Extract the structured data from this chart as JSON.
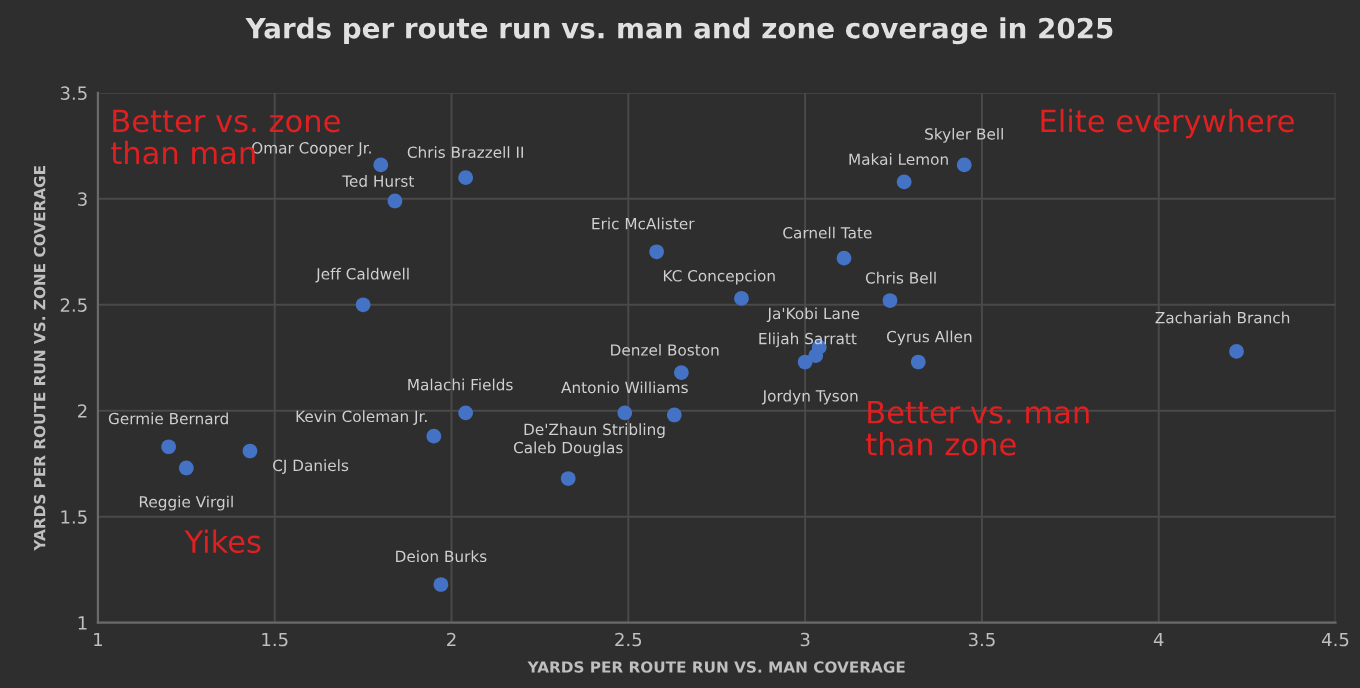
{
  "chart_data": {
    "type": "scatter",
    "title": "Yards per route run vs. man and zone coverage in 2025",
    "xlabel": "YARDS PER ROUTE RUN VS. MAN COVERAGE",
    "ylabel": "YARDS PER ROUTE RUN VS. ZONE COVERAGE",
    "xlim": [
      1,
      4.5
    ],
    "xticks": [
      1,
      1.5,
      2,
      2.5,
      3,
      3.5,
      4,
      4.5
    ],
    "ylim": [
      1,
      3.5
    ],
    "yticks": [
      1,
      1.5,
      2,
      2.5,
      3,
      3.5
    ],
    "grid": true,
    "marker": "circle",
    "series": [
      {
        "color": "#4472c4",
        "x": [
          1.8,
          2.04,
          1.84,
          1.75,
          2.58,
          3.28,
          3.45,
          3.11,
          2.82,
          3.24,
          4.22,
          3.32,
          3.03,
          3.04,
          3.0,
          2.65,
          2.49,
          2.63,
          2.04,
          1.95,
          2.33,
          1.2,
          1.43,
          1.25,
          1.97
        ],
        "values": [
          3.16,
          3.1,
          2.99,
          2.5,
          2.75,
          3.08,
          3.16,
          2.72,
          2.53,
          2.52,
          2.28,
          2.23,
          2.26,
          2.3,
          2.23,
          2.18,
          1.99,
          1.98,
          1.99,
          1.88,
          1.68,
          1.83,
          1.81,
          1.73,
          1.18
        ]
      }
    ],
    "annotations": [
      {
        "text": "Omar Cooper Jr.",
        "x": 1.8,
        "y": 3.16
      },
      {
        "text": "Chris Brazzell II",
        "x": 2.04,
        "y": 3.1
      },
      {
        "text": "Ted Hurst",
        "x": 1.84,
        "y": 2.99
      },
      {
        "text": "Jeff Caldwell",
        "x": 1.75,
        "y": 2.5
      },
      {
        "text": "Eric McAlister",
        "x": 2.58,
        "y": 2.75
      },
      {
        "text": "Makai Lemon",
        "x": 3.28,
        "y": 3.08
      },
      {
        "text": "Skyler Bell",
        "x": 3.45,
        "y": 3.16
      },
      {
        "text": "Carnell Tate",
        "x": 3.11,
        "y": 2.72
      },
      {
        "text": "KC Concepcion",
        "x": 2.82,
        "y": 2.53
      },
      {
        "text": "Chris Bell",
        "x": 3.24,
        "y": 2.52
      },
      {
        "text": "Zachariah Branch",
        "x": 4.22,
        "y": 2.28
      },
      {
        "text": "Cyrus Allen",
        "x": 3.32,
        "y": 2.23
      },
      {
        "text": "Elijah Sarratt",
        "x": 3.03,
        "y": 2.26
      },
      {
        "text": "Ja'Kobi Lane",
        "x": 3.04,
        "y": 2.3
      },
      {
        "text": "Jordyn Tyson",
        "x": 3.0,
        "y": 2.23
      },
      {
        "text": "Denzel Boston",
        "x": 2.65,
        "y": 2.18
      },
      {
        "text": "Antonio Williams",
        "x": 2.49,
        "y": 1.99
      },
      {
        "text": "De'Zhaun Stribling",
        "x": 2.63,
        "y": 1.98
      },
      {
        "text": "Malachi Fields",
        "x": 2.04,
        "y": 1.99
      },
      {
        "text": "Kevin Coleman Jr.",
        "x": 1.95,
        "y": 1.88
      },
      {
        "text": "Caleb Douglas",
        "x": 2.33,
        "y": 1.68
      },
      {
        "text": "Germie Bernard",
        "x": 1.2,
        "y": 1.83
      },
      {
        "text": "CJ Daniels",
        "x": 1.43,
        "y": 1.81
      },
      {
        "text": "Reggie Virgil",
        "x": 1.25,
        "y": 1.73
      },
      {
        "text": "Deion Burks",
        "x": 1.97,
        "y": 1.18
      },
      "Better vs. zone\nthan man",
      "Elite everywhere",
      "Better vs. man\nthan zone",
      "Yikes"
    ]
  }
}
